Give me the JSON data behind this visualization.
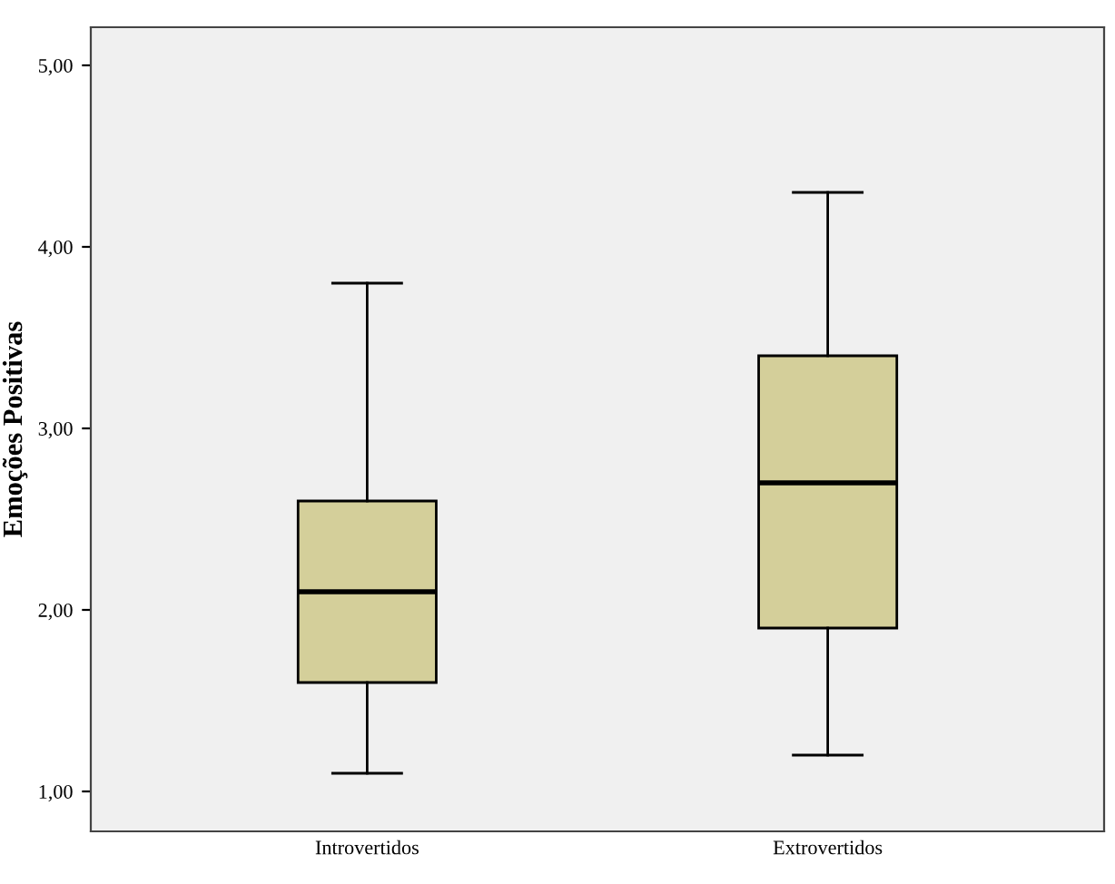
{
  "chart_data": {
    "type": "box",
    "ylabel": "Emoções Positivas",
    "categories": [
      "Introvertidos",
      "Extrovertidos"
    ],
    "boxes": [
      {
        "low": 1.1,
        "q1": 1.6,
        "median": 2.1,
        "q3": 2.6,
        "high": 3.8
      },
      {
        "low": 1.2,
        "q1": 1.9,
        "median": 2.7,
        "q3": 3.4,
        "high": 4.3
      }
    ],
    "color": "#d4cf9a",
    "ylim": [
      0.78,
      5.21
    ],
    "yticks": [
      {
        "value": 1,
        "label": "1,00"
      },
      {
        "value": 2,
        "label": "2,00"
      },
      {
        "value": 3,
        "label": "3,00"
      },
      {
        "value": 4,
        "label": "4,00"
      },
      {
        "value": 5,
        "label": "5,00"
      }
    ],
    "grid": false
  }
}
